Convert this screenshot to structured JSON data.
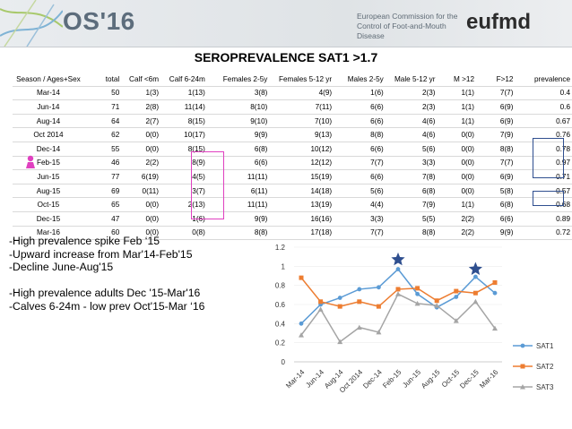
{
  "header": {
    "logo_text": "OS'16",
    "ec_text": "European Commission for the Control of Foot-and-Mouth Disease",
    "brand": "eufmd"
  },
  "title": "SEROPREVALENCE SAT1   >1.7",
  "table": {
    "headers": [
      "Season / Ages+Sex",
      "total",
      "Calf <6m",
      "Calf 6-24m",
      "Females 2-5y",
      "Females 5-12 yr",
      "Males 2-5y",
      "Male 5-12 yr",
      "M >12",
      "F>12",
      "prevalence"
    ],
    "rows": [
      [
        "Mar-14",
        "50",
        "1(3)",
        "1(13)",
        "3(8)",
        "4(9)",
        "1(6)",
        "2(3)",
        "1(1)",
        "7(7)",
        "0.4"
      ],
      [
        "Jun-14",
        "71",
        "2(8)",
        "11(14)",
        "8(10)",
        "7(11)",
        "6(6)",
        "2(3)",
        "1(1)",
        "6(9)",
        "0.6"
      ],
      [
        "Aug-14",
        "64",
        "2(7)",
        "8(15)",
        "9(10)",
        "7(10)",
        "6(6)",
        "4(6)",
        "1(1)",
        "6(9)",
        "0.67"
      ],
      [
        "Oct  2014",
        "62",
        "0(0)",
        "10(17)",
        "9(9)",
        "9(13)",
        "8(8)",
        "4(6)",
        "0(0)",
        "7(9)",
        "0.76"
      ],
      [
        "Dec-14",
        "55",
        "0(0)",
        "8(15)",
        "6(8)",
        "10(12)",
        "6(6)",
        "5(6)",
        "0(0)",
        "8(8)",
        "0.78"
      ],
      [
        "Feb-15",
        "46",
        "2(2)",
        "8(9)",
        "6(6)",
        "12(12)",
        "7(7)",
        "3(3)",
        "0(0)",
        "7(7)",
        "0.97"
      ],
      [
        "Jun-15",
        "77",
        "6(19)",
        "4(5)",
        "11(11)",
        "15(19)",
        "6(6)",
        "7(8)",
        "0(0)",
        "6(9)",
        "0.71"
      ],
      [
        "Aug-15",
        "69",
        "0(11)",
        "3(7)",
        "6(11)",
        "14(18)",
        "5(6)",
        "6(8)",
        "0(0)",
        "5(8)",
        "0.57"
      ],
      [
        "Oct-15",
        "65",
        "0(0)",
        "2(13)",
        "11(11)",
        "13(19)",
        "4(4)",
        "7(9)",
        "1(1)",
        "6(8)",
        "0.68"
      ],
      [
        "Dec-15",
        "47",
        "0(0)",
        "1(6)",
        "9(9)",
        "16(16)",
        "3(3)",
        "5(5)",
        "2(2)",
        "6(6)",
        "0.89"
      ],
      [
        "Mar-16",
        "60",
        "0(0)",
        "0(8)",
        "8(8)",
        "17(18)",
        "7(7)",
        "8(8)",
        "2(2)",
        "9(9)",
        "0.72"
      ]
    ]
  },
  "notes": [
    "-High prevalence spike Feb ‘15",
    "-Upward increase from Mar'14-Feb'15",
    "-Decline June-Aug'15",
    "",
    "-High prevalence adults Dec '15-Mar'16",
    "-Calves 6-24m - low prev Oct'15-Mar ‘16"
  ],
  "chart_data": {
    "type": "line",
    "categories": [
      "Mar-14",
      "Jun-14",
      "Aug-14",
      "Oct 2014",
      "Dec-14",
      "Feb-15",
      "Jun-15",
      "Aug-15",
      "Oct-15",
      "Dec-15",
      "Mar-16"
    ],
    "series": [
      {
        "name": "SAT1",
        "color": "#5b9bd5",
        "values": [
          0.4,
          0.6,
          0.67,
          0.76,
          0.78,
          0.97,
          0.71,
          0.57,
          0.68,
          0.89,
          0.72
        ]
      },
      {
        "name": "SAT2",
        "color": "#ed7d31",
        "values": [
          0.88,
          0.63,
          0.58,
          0.63,
          0.58,
          0.76,
          0.77,
          0.64,
          0.74,
          0.72,
          0.83
        ]
      },
      {
        "name": "SAT3",
        "color": "#a5a5a5",
        "values": [
          0.28,
          0.55,
          0.21,
          0.36,
          0.31,
          0.71,
          0.61,
          0.59,
          0.43,
          0.63,
          0.35
        ]
      }
    ],
    "ylim": [
      0,
      1.2
    ],
    "yticks": [
      "0",
      "0.2",
      "0.4",
      "0.6",
      "0.8",
      "1",
      "1.2"
    ],
    "legend_position": "right",
    "annotations": [
      {
        "type": "star",
        "category": "Feb-15",
        "value": 1.07,
        "color": "#2f4f8f"
      },
      {
        "type": "star",
        "category": "Dec-15",
        "value": 0.97,
        "color": "#2f4f8f"
      }
    ]
  },
  "highlight_colors": {
    "magenta": "#e040c0",
    "navy": "#2f4f8f"
  }
}
